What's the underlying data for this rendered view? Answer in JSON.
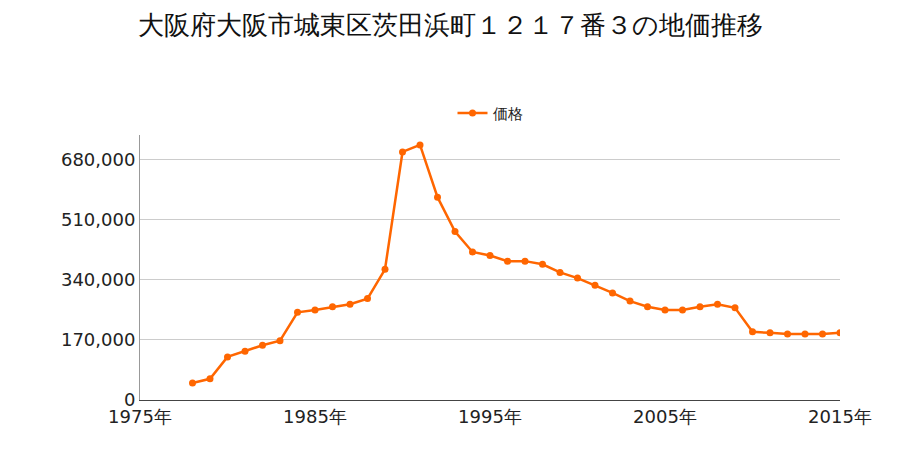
{
  "chart_data": {
    "type": "line",
    "title": "大阪府大阪市城東区茨田浜町１２１７番３の地価推移",
    "x": [
      1978,
      1979,
      1980,
      1981,
      1982,
      1983,
      1984,
      1985,
      1986,
      1987,
      1988,
      1989,
      1990,
      1991,
      1992,
      1993,
      1994,
      1995,
      1996,
      1997,
      1998,
      1999,
      2000,
      2001,
      2002,
      2003,
      2004,
      2005,
      2006,
      2007,
      2008,
      2009,
      2010,
      2011,
      2012,
      2013,
      2014,
      2015
    ],
    "series": [
      {
        "name": "価格",
        "color": "#ff6600",
        "marker": "circle",
        "values": [
          48000,
          60000,
          122000,
          138000,
          155000,
          168000,
          248000,
          255000,
          264000,
          271000,
          287000,
          370000,
          702000,
          722000,
          574000,
          477000,
          419000,
          409000,
          393000,
          393000,
          384000,
          361000,
          345000,
          325000,
          303000,
          280000,
          264000,
          255000,
          255000,
          264000,
          271000,
          261000,
          193000,
          190000,
          187000,
          187000,
          187000,
          190000
        ]
      }
    ],
    "xlim": [
      1975,
      2015
    ],
    "xticks": [
      {
        "value": 1975,
        "label": "1975年"
      },
      {
        "value": 1985,
        "label": "1985年"
      },
      {
        "value": 1995,
        "label": "1995年"
      },
      {
        "value": 2005,
        "label": "2005年"
      },
      {
        "value": 2015,
        "label": "2015年"
      }
    ],
    "ylim": [
      0,
      750000
    ],
    "yticks": [
      0,
      {
        "value": 170000,
        "label": "170,000"
      },
      {
        "value": 340000,
        "label": "340,000"
      },
      {
        "value": 510000,
        "label": "510,000"
      },
      {
        "value": 680000,
        "label": "680,000"
      }
    ],
    "grid": true,
    "legend": "top"
  }
}
